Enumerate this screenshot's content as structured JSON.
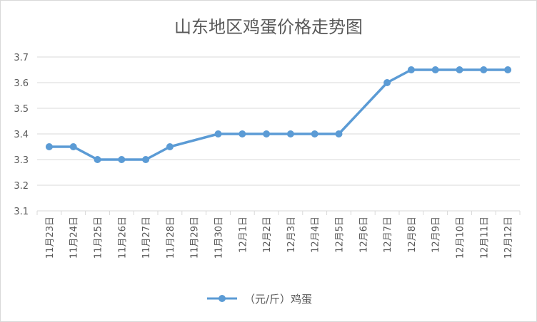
{
  "chart_data": {
    "type": "line",
    "title": "山东地区鸡蛋价格走势图",
    "xlabel": "",
    "ylabel": "",
    "ylim": [
      3.1,
      3.7
    ],
    "yticks": [
      "3.1",
      "3.2",
      "3.3",
      "3.4",
      "3.5",
      "3.6",
      "3.7"
    ],
    "grid": true,
    "legend_position": "bottom",
    "categories": [
      "11月23日",
      "11月24日",
      "11月25日",
      "11月26日",
      "11月27日",
      "11月28日",
      "11月29日",
      "11月30日",
      "12月1日",
      "12月2日",
      "12月3日",
      "12月4日",
      "12月5日",
      "12月6日",
      "12月7日",
      "12月8日",
      "12月9日",
      "12月10日",
      "12月11日",
      "12月12日"
    ],
    "series": [
      {
        "name": "（元/斤）鸡蛋",
        "color": "#5b9bd5",
        "values": [
          3.35,
          3.35,
          3.3,
          3.3,
          3.3,
          3.35,
          null,
          3.4,
          3.4,
          3.4,
          3.4,
          3.4,
          3.4,
          null,
          3.6,
          3.65,
          3.65,
          3.65,
          3.65,
          3.65
        ]
      }
    ]
  }
}
